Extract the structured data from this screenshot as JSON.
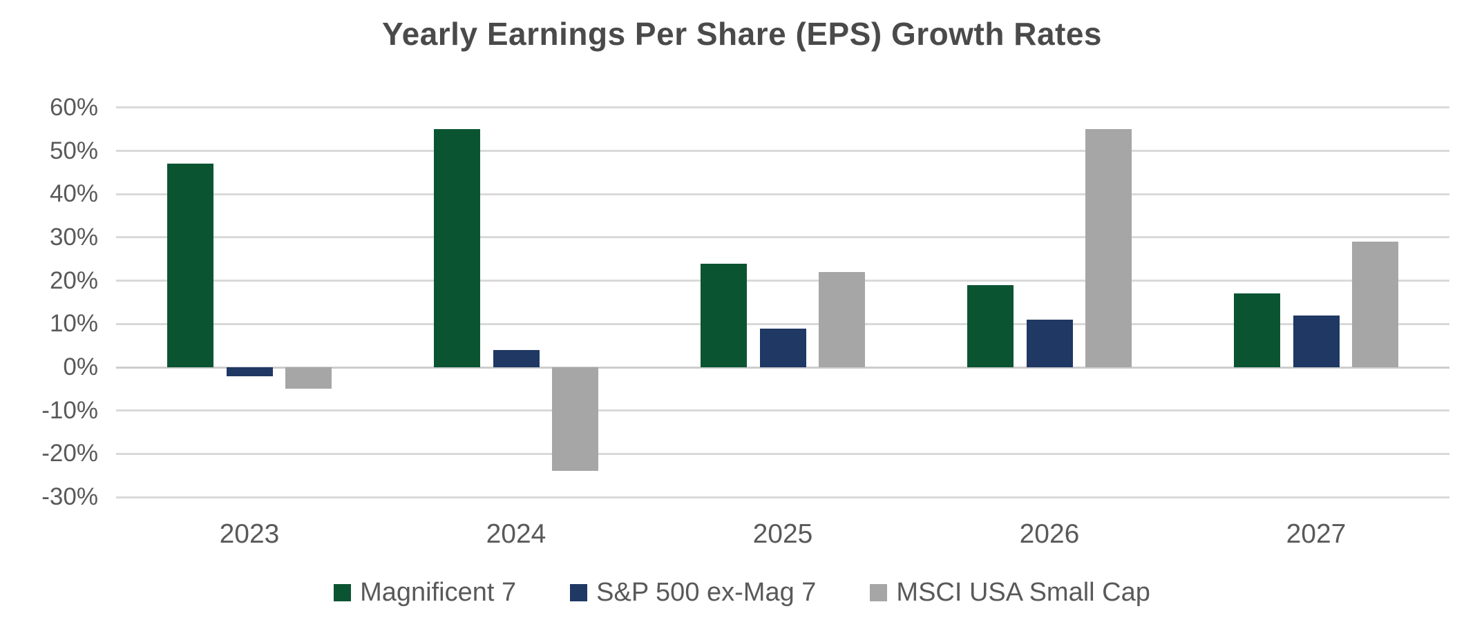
{
  "chart_data": {
    "type": "bar",
    "title": "Yearly Earnings Per Share (EPS) Growth Rates",
    "categories": [
      "2023",
      "2024",
      "2025",
      "2026",
      "2027"
    ],
    "series": [
      {
        "name": "Magnificent 7",
        "color": "#0B5432",
        "values": [
          47,
          55,
          24,
          19,
          17
        ]
      },
      {
        "name": "S&P 500 ex-Mag 7",
        "color": "#1F3864",
        "values": [
          -2,
          4,
          9,
          11,
          12
        ]
      },
      {
        "name": "MSCI USA Small Cap",
        "color": "#A6A6A6",
        "values": [
          -5,
          -24,
          22,
          55,
          29
        ]
      }
    ],
    "xlabel": "",
    "ylabel": "",
    "y_axis": {
      "min": -30,
      "max": 60,
      "step": 10,
      "tick_suffix": "%",
      "tick_labels": [
        "60%",
        "50%",
        "40%",
        "30%",
        "20%",
        "10%",
        "0%",
        "-10%",
        "-20%",
        "-30%"
      ]
    },
    "grid": true,
    "legend_position": "bottom",
    "colors": {
      "background": "#FFFFFF",
      "gridline": "#D9D9D9",
      "zero_line": "#CDCDCD",
      "axis_text": "#595959",
      "title_text": "#4A4A4A"
    }
  }
}
